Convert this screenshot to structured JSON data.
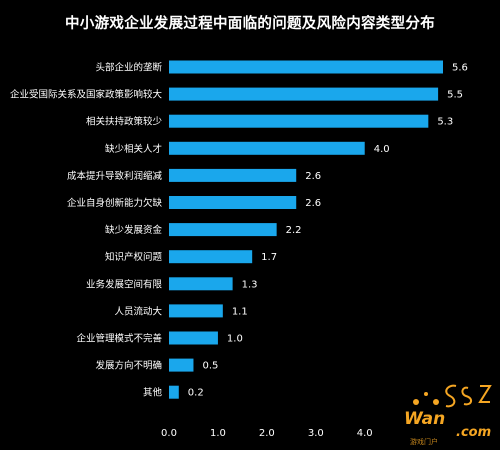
{
  "chart_data": {
    "type": "bar",
    "orientation": "horizontal",
    "title": "中小游戏企业发展过程中面临的问题及风险内容类型分布",
    "categories": [
      "头部企业的垄断",
      "企业受国际关系及国家政策影响较大",
      "相关扶持政策较少",
      "缺少相关人才",
      "成本提升导致利润缩减",
      "企业自身创新能力欠缺",
      "缺少发展资金",
      "知识产权问题",
      "业务发展空间有限",
      "人员流动大",
      "企业管理模式不完善",
      "发展方向不明确",
      "其他"
    ],
    "values": [
      5.6,
      5.5,
      5.3,
      4.0,
      2.6,
      2.6,
      2.2,
      1.7,
      1.3,
      1.1,
      1.0,
      0.5,
      0.2
    ],
    "value_labels": [
      "5.6",
      "5.5",
      "5.3",
      "4.0",
      "2.6",
      "2.6",
      "2.2",
      "1.7",
      "1.3",
      "1.1",
      "1.0",
      "0.5",
      "0.2"
    ],
    "xticks": [
      0,
      1,
      2,
      3,
      4
    ],
    "xtick_labels": [
      "0.0",
      "1.0",
      "2.0",
      "3.0",
      "4.0"
    ],
    "xlim": [
      0,
      5.6
    ],
    "grid": false,
    "legend": "none",
    "xlabel": "",
    "ylabel": "",
    "colors": {
      "background": "#000000",
      "bar": "#1aa7ec",
      "text": "#ffffff",
      "watermark": "#f5a623"
    }
  },
  "watermark": {
    "brand": "Wan",
    "domain": ".com",
    "sub": "游戏门户"
  }
}
